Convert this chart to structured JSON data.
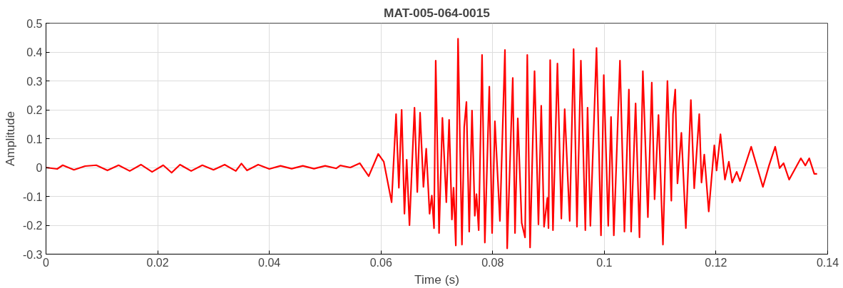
{
  "chart_data": {
    "type": "line",
    "title": "MAT-005-064-0015",
    "xlabel": "Time (s)",
    "ylabel": "Amplitude",
    "xlim": [
      0,
      0.14
    ],
    "ylim": [
      -0.3,
      0.5
    ],
    "xticks": [
      0,
      0.02,
      0.04,
      0.06,
      0.08,
      0.1,
      0.12,
      0.14
    ],
    "yticks": [
      -0.3,
      -0.2,
      -0.1,
      0,
      0.1,
      0.2,
      0.3,
      0.4,
      0.5
    ],
    "grid": true,
    "line_style": "solid",
    "marker": "none",
    "series": [
      {
        "color": "#ff0000",
        "x": [
          0,
          0.002,
          0.003,
          0.005,
          0.007,
          0.009,
          0.011,
          0.013,
          0.015,
          0.017,
          0.019,
          0.021,
          0.0225,
          0.024,
          0.026,
          0.028,
          0.03,
          0.032,
          0.034,
          0.035,
          0.036,
          0.038,
          0.04,
          0.042,
          0.044,
          0.046,
          0.048,
          0.05,
          0.052,
          0.0527,
          0.0545,
          0.0562,
          0.0578,
          0.0595,
          0.0605,
          0.0619,
          0.0627,
          0.0632,
          0.0637,
          0.0642,
          0.0646,
          0.0651,
          0.066,
          0.0665,
          0.067,
          0.0676,
          0.0681,
          0.0687,
          0.0691,
          0.0695,
          0.0698,
          0.0704,
          0.071,
          0.0717,
          0.0722,
          0.0727,
          0.073,
          0.0734,
          0.0738,
          0.0745,
          0.0749,
          0.0753,
          0.0758,
          0.0763,
          0.0768,
          0.0771,
          0.0775,
          0.0781,
          0.0786,
          0.0794,
          0.0799,
          0.0804,
          0.0813,
          0.0822,
          0.0826,
          0.0836,
          0.084,
          0.0845,
          0.0852,
          0.0858,
          0.0862,
          0.0867,
          0.0875,
          0.0882,
          0.0887,
          0.0892,
          0.0898,
          0.09,
          0.0903,
          0.0908,
          0.0916,
          0.0923,
          0.0929,
          0.0938,
          0.0945,
          0.0951,
          0.0958,
          0.0966,
          0.097,
          0.0975,
          0.0986,
          0.0994,
          0.0999,
          0.1007,
          0.1012,
          0.1017,
          0.1028,
          0.1036,
          0.1044,
          0.1048,
          0.1056,
          0.1063,
          0.1069,
          0.1078,
          0.1085,
          0.109,
          0.1097,
          0.1105,
          0.1113,
          0.112,
          0.1123,
          0.1127,
          0.1131,
          0.1138,
          0.1146,
          0.1155,
          0.1161,
          0.117,
          0.1174,
          0.1179,
          0.1187,
          0.1197,
          0.1201,
          0.1208,
          0.1216,
          0.1223,
          0.1229,
          0.1237,
          0.1243,
          0.1263,
          0.1284,
          0.1295,
          0.1306,
          0.1314,
          0.1321,
          0.1331,
          0.1352,
          0.136,
          0.1367,
          0.1376,
          0.1381
        ],
        "values": [
          0,
          -0.005,
          0.008,
          -0.008,
          0.005,
          0.008,
          -0.01,
          0.008,
          -0.012,
          0.01,
          -0.015,
          0.008,
          -0.018,
          0.01,
          -0.012,
          0.008,
          -0.008,
          0.01,
          -0.012,
          0.014,
          -0.01,
          0.01,
          -0.005,
          0.006,
          -0.004,
          0.006,
          -0.004,
          0.006,
          -0.003,
          0.007,
          0.0,
          0.015,
          -0.03,
          0.047,
          0.02,
          -0.12,
          0.185,
          -0.07,
          0.2,
          -0.16,
          0.027,
          -0.2,
          0.207,
          -0.085,
          0.19,
          -0.067,
          0.065,
          -0.16,
          -0.097,
          -0.21,
          0.37,
          -0.227,
          0.172,
          -0.12,
          0.165,
          -0.18,
          -0.07,
          -0.27,
          0.446,
          -0.267,
          0.14,
          0.227,
          -0.222,
          0.197,
          -0.167,
          -0.092,
          -0.217,
          0.39,
          -0.26,
          0.28,
          -0.227,
          0.16,
          -0.185,
          0.407,
          -0.28,
          0.31,
          -0.227,
          0.17,
          -0.192,
          -0.242,
          0.39,
          -0.277,
          0.334,
          -0.197,
          0.214,
          -0.205,
          -0.105,
          -0.21,
          0.372,
          -0.217,
          0.36,
          -0.177,
          0.202,
          -0.185,
          0.41,
          -0.205,
          0.37,
          -0.217,
          0.207,
          -0.202,
          0.414,
          -0.235,
          0.32,
          -0.202,
          0.175,
          -0.235,
          0.37,
          -0.222,
          0.27,
          -0.222,
          0.222,
          -0.242,
          0.334,
          -0.172,
          0.294,
          -0.11,
          0.182,
          -0.267,
          0.3,
          -0.115,
          0.185,
          0.27,
          -0.055,
          0.12,
          -0.21,
          0.234,
          -0.072,
          0.185,
          -0.052,
          0.045,
          -0.152,
          0.077,
          -0.01,
          0.115,
          -0.042,
          0.02,
          -0.052,
          -0.015,
          -0.047,
          0.072,
          -0.067,
          0.007,
          0.072,
          -0.002,
          0.015,
          -0.042,
          0.032,
          0.007,
          0.032,
          -0.022,
          -0.022
        ]
      }
    ]
  }
}
